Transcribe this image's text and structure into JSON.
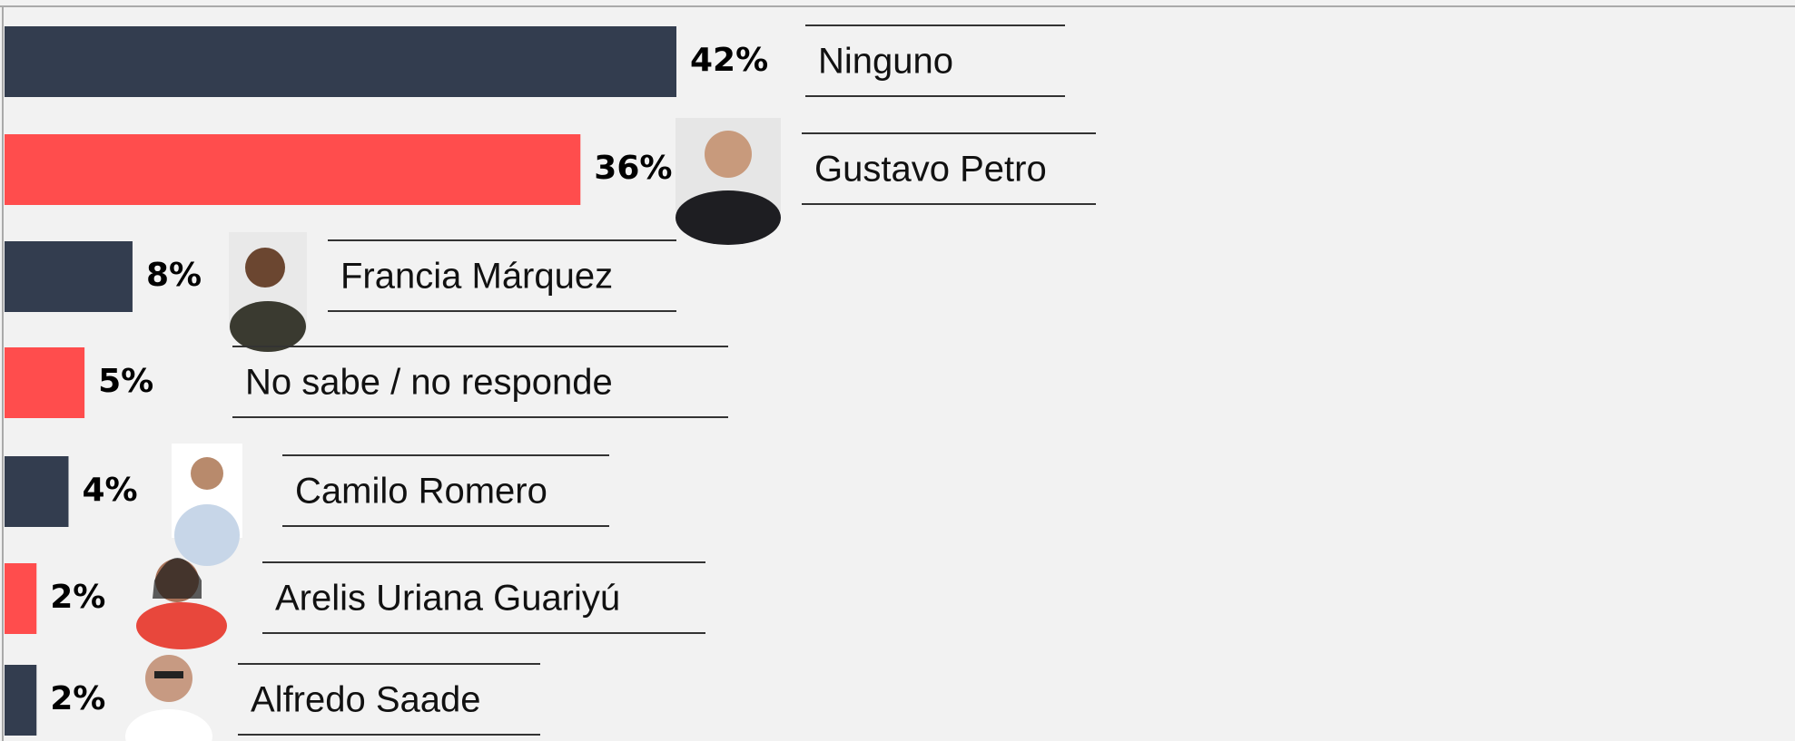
{
  "chart_data": {
    "type": "bar",
    "orientation": "horizontal",
    "categories": [
      "Ninguno",
      "Gustavo Petro",
      "Francia Márquez",
      "No sabe / no responde",
      "Camilo Romero",
      "Arelis Uriana Guariyú",
      "Alfredo Saade"
    ],
    "values": [
      42,
      36,
      8,
      5,
      4,
      2,
      2
    ],
    "value_labels": [
      "42%",
      "36%",
      "8%",
      "5%",
      "4%",
      "2%",
      "2%"
    ],
    "colors": [
      "#333d4f",
      "#ff4d4d",
      "#333d4f",
      "#ff4d4d",
      "#333d4f",
      "#ff4d4d",
      "#333d4f"
    ]
  }
}
